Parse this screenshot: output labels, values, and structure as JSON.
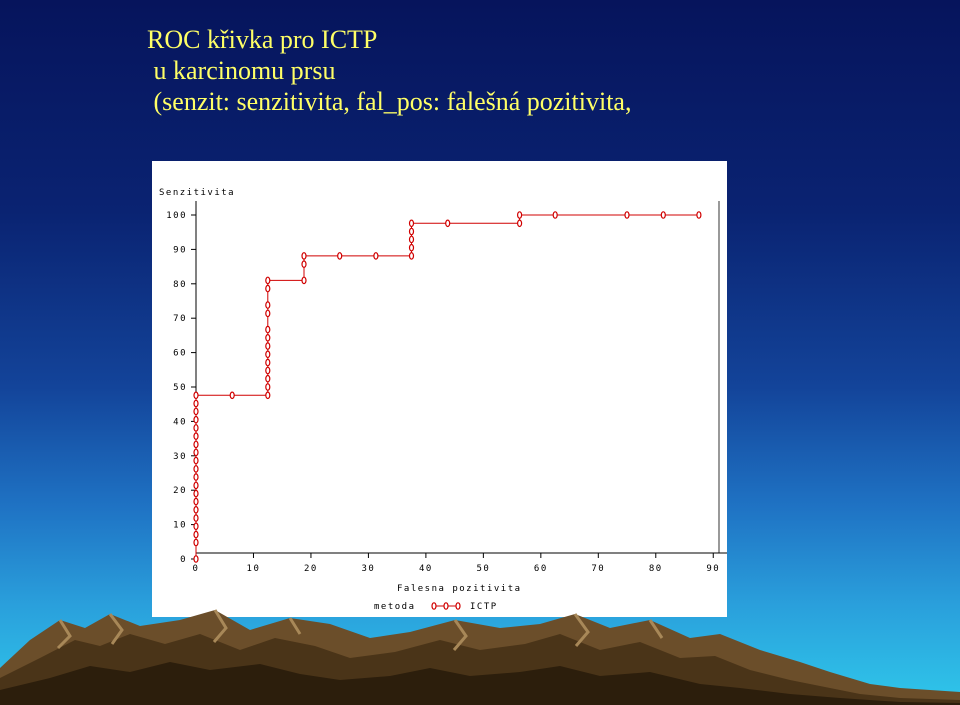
{
  "slide": {
    "title_lines": [
      "ROC křivka pro ICTP",
      " u karcinomu prsu",
      " (senzit: senzitivita, fal_pos: falešná pozitivita,"
    ]
  },
  "colors": {
    "series": "#d00000",
    "title_text": "#ffff66",
    "panel": "#ffffff"
  },
  "chart_data": {
    "type": "line",
    "ylabel": "Senzitivita",
    "xlabel": "Falesna pozitivita",
    "xlim": [
      0,
      91
    ],
    "ylim": [
      0,
      100
    ],
    "x_ticks": [
      0,
      10,
      20,
      30,
      40,
      50,
      60,
      70,
      80,
      90
    ],
    "y_ticks": [
      0,
      10,
      20,
      30,
      40,
      50,
      60,
      70,
      80,
      90,
      100
    ],
    "x_tick_labels": [
      "0",
      "10",
      "20",
      "30",
      "40",
      "50",
      "60",
      "70",
      "80",
      "90"
    ],
    "y_tick_labels": [
      "0",
      "10",
      "20",
      "30",
      "40",
      "50",
      "60",
      "70",
      "80",
      "90",
      "100"
    ],
    "grid": false,
    "step_line": true,
    "legend": {
      "title": "metoda",
      "entries": [
        "ICTP"
      ],
      "position": "bottom"
    },
    "series": [
      {
        "name": "ICTP",
        "marker": "0",
        "points": [
          [
            0,
            0
          ],
          [
            0,
            4.8
          ],
          [
            0,
            7.1
          ],
          [
            0,
            9.5
          ],
          [
            0,
            11.9
          ],
          [
            0,
            14.3
          ],
          [
            0,
            16.7
          ],
          [
            0,
            19.0
          ],
          [
            0,
            21.4
          ],
          [
            0,
            23.8
          ],
          [
            0,
            26.2
          ],
          [
            0,
            28.6
          ],
          [
            0,
            31.0
          ],
          [
            0,
            33.3
          ],
          [
            0,
            35.7
          ],
          [
            0,
            38.1
          ],
          [
            0,
            40.5
          ],
          [
            0,
            42.9
          ],
          [
            0,
            45.2
          ],
          [
            0,
            47.6
          ],
          [
            6.3,
            47.6
          ],
          [
            12.5,
            47.6
          ],
          [
            12.5,
            50.0
          ],
          [
            12.5,
            52.4
          ],
          [
            12.5,
            54.8
          ],
          [
            12.5,
            57.1
          ],
          [
            12.5,
            59.5
          ],
          [
            12.5,
            61.9
          ],
          [
            12.5,
            64.3
          ],
          [
            12.5,
            66.7
          ],
          [
            12.5,
            71.4
          ],
          [
            12.5,
            73.8
          ],
          [
            12.5,
            78.6
          ],
          [
            12.5,
            81.0
          ],
          [
            18.8,
            81.0
          ],
          [
            18.8,
            85.7
          ],
          [
            18.8,
            88.1
          ],
          [
            25.0,
            88.1
          ],
          [
            31.3,
            88.1
          ],
          [
            37.5,
            88.1
          ],
          [
            37.5,
            90.5
          ],
          [
            37.5,
            92.9
          ],
          [
            37.5,
            95.2
          ],
          [
            37.5,
            97.6
          ],
          [
            43.8,
            97.6
          ],
          [
            56.3,
            97.6
          ],
          [
            56.3,
            100
          ],
          [
            62.5,
            100
          ],
          [
            75.0,
            100
          ],
          [
            81.3,
            100
          ],
          [
            87.5,
            100
          ]
        ]
      }
    ]
  }
}
